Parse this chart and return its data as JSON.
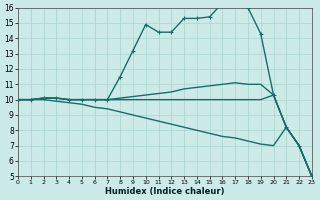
{
  "xlabel": "Humidex (Indice chaleur)",
  "xlim": [
    0,
    23
  ],
  "ylim": [
    5,
    16
  ],
  "yticks": [
    5,
    6,
    7,
    8,
    9,
    10,
    11,
    12,
    13,
    14,
    15,
    16
  ],
  "xticks": [
    0,
    1,
    2,
    3,
    4,
    5,
    6,
    7,
    8,
    9,
    10,
    11,
    12,
    13,
    14,
    15,
    16,
    17,
    18,
    19,
    20,
    21,
    22,
    23
  ],
  "bg_color": "#cceae7",
  "grid_color": "#aad4d0",
  "line_color": "#1a6b6b",
  "series_main": {
    "x": [
      0,
      1,
      2,
      3,
      4,
      5,
      6,
      7,
      8,
      9,
      10,
      11,
      12,
      13,
      14,
      15,
      16,
      17,
      18,
      19,
      20,
      21,
      22,
      23
    ],
    "y": [
      10.0,
      10.0,
      10.1,
      10.1,
      10.0,
      10.0,
      10.0,
      10.0,
      11.5,
      13.2,
      14.9,
      14.4,
      14.4,
      15.3,
      15.3,
      15.4,
      16.3,
      16.4,
      16.0,
      14.3,
      10.3,
      8.2,
      7.0,
      5.0
    ]
  },
  "series_upper": {
    "x": [
      0,
      1,
      2,
      3,
      4,
      5,
      6,
      7,
      8,
      9,
      10,
      11,
      12,
      13,
      14,
      15,
      16,
      17,
      18,
      19,
      20,
      21,
      22,
      23
    ],
    "y": [
      10.0,
      10.0,
      10.1,
      10.1,
      10.0,
      10.0,
      10.0,
      10.0,
      10.1,
      10.2,
      10.3,
      10.4,
      10.5,
      10.7,
      10.8,
      10.9,
      11.0,
      11.1,
      11.0,
      11.0,
      10.3,
      8.2,
      7.0,
      5.0
    ]
  },
  "series_flat": {
    "x": [
      0,
      1,
      2,
      3,
      4,
      5,
      6,
      7,
      8,
      9,
      10,
      11,
      12,
      13,
      14,
      15,
      16,
      17,
      18,
      19,
      20,
      21,
      22,
      23
    ],
    "y": [
      10.0,
      10.0,
      10.1,
      10.1,
      10.0,
      10.0,
      10.0,
      10.0,
      10.0,
      10.0,
      10.0,
      10.0,
      10.0,
      10.0,
      10.0,
      10.0,
      10.0,
      10.0,
      10.0,
      10.0,
      10.3,
      8.2,
      7.0,
      5.0
    ]
  },
  "series_lower": {
    "x": [
      0,
      1,
      2,
      3,
      4,
      5,
      6,
      7,
      8,
      9,
      10,
      11,
      12,
      13,
      14,
      15,
      16,
      17,
      18,
      19,
      20,
      21,
      22,
      23
    ],
    "y": [
      10.0,
      10.0,
      10.0,
      9.9,
      9.8,
      9.7,
      9.5,
      9.4,
      9.2,
      9.0,
      8.8,
      8.6,
      8.4,
      8.2,
      8.0,
      7.8,
      7.6,
      7.5,
      7.3,
      7.1,
      7.0,
      8.2,
      7.0,
      5.0
    ]
  }
}
